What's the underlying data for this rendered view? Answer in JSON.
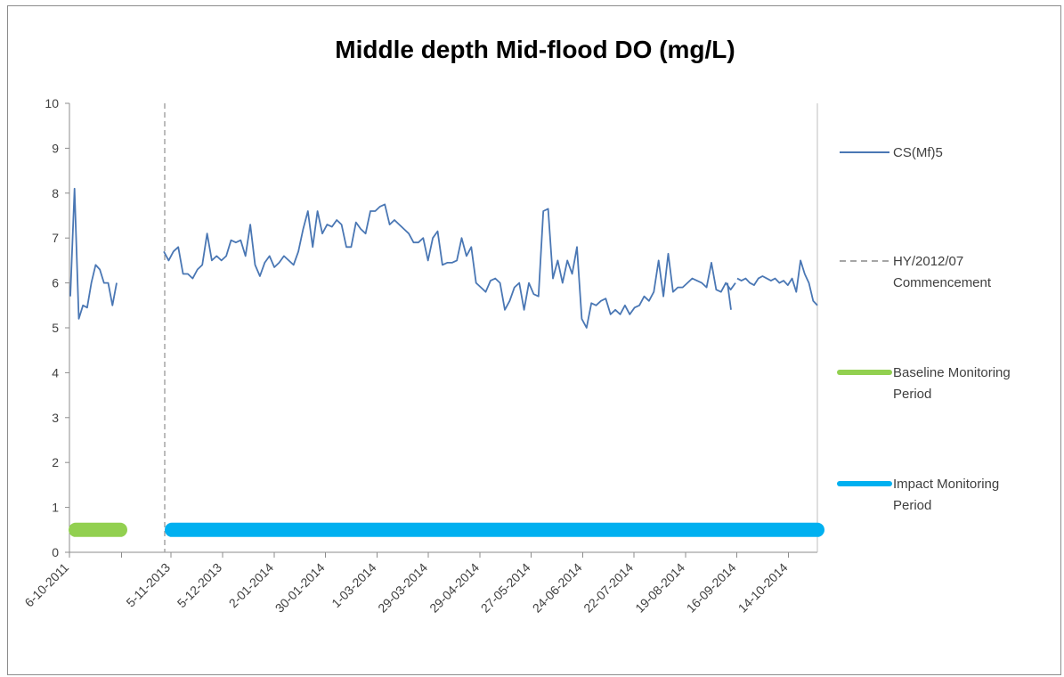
{
  "chart_data": {
    "type": "line",
    "title": "Middle depth Mid-flood DO (mg/L)",
    "xlabel": "",
    "ylabel": "",
    "ylim": [
      0,
      10
    ],
    "y_ticks": [
      "0",
      "1",
      "2",
      "3",
      "4",
      "5",
      "6",
      "7",
      "8",
      "9",
      "10"
    ],
    "x_tick_labels": [
      "6-10-2011",
      "5-11-2013",
      "5-12-2013",
      "2-01-2014",
      "30-01-2014",
      "1-03-2014",
      "29-03-2014",
      "29-04-2014",
      "27-05-2014",
      "24-06-2014",
      "22-07-2014",
      "19-08-2014",
      "16-09-2014",
      "14-10-2014"
    ],
    "grid": false,
    "legend_position": "right",
    "colors": {
      "do_series": "#4a77b4",
      "commencement": "#a6a6a6",
      "baseline": "#92d050",
      "impact": "#00b0f0",
      "axis": "#8c8c8c"
    },
    "legend": [
      {
        "label": "CS(Mf)5",
        "style": "line"
      },
      {
        "label": "HY/2012/07 Commencement",
        "style": "dash"
      },
      {
        "label": "Baseline Monitoring Period",
        "style": "thick-green"
      },
      {
        "label": "Impact Monitoring Period",
        "style": "thick-blue"
      }
    ],
    "series": [
      {
        "name": "CS(Mf)5",
        "segments": [
          [
            5.7,
            8.1,
            5.2,
            5.5,
            5.45,
            6.0,
            6.4,
            6.3,
            6.0,
            6.0,
            5.5,
            6.0
          ],
          [
            6.7,
            6.5,
            6.7,
            6.8,
            6.2,
            6.2,
            6.1,
            6.3,
            6.4,
            7.1,
            6.5,
            6.6,
            6.5,
            6.6,
            6.95,
            6.9,
            6.95,
            6.6,
            7.3,
            6.4,
            6.15,
            6.45,
            6.6,
            6.35,
            6.45,
            6.6,
            6.5,
            6.4,
            6.7,
            7.2,
            7.6,
            6.8,
            7.6,
            7.1,
            7.3,
            7.25,
            7.4,
            7.3,
            6.8,
            6.8,
            7.35,
            7.2,
            7.1,
            7.6,
            7.6,
            7.7,
            7.75,
            7.3,
            7.4,
            7.3,
            7.2,
            7.1,
            6.9,
            6.9,
            7.0,
            6.5,
            7.0,
            7.15,
            6.4,
            6.45,
            6.45,
            6.5,
            7.0,
            6.6,
            6.8,
            6.0,
            5.9,
            5.8,
            6.05,
            6.1,
            6.0,
            5.4,
            5.6,
            5.9,
            6.0,
            5.4,
            6.0,
            5.75,
            5.7,
            7.6,
            7.65,
            6.1,
            6.5,
            6.0,
            6.5,
            6.2,
            6.8,
            5.2,
            5.0,
            5.55,
            5.5,
            5.6,
            5.65,
            5.3,
            5.4,
            5.3,
            5.5,
            5.3,
            5.45,
            5.5,
            5.7,
            5.6,
            5.8,
            6.5,
            5.7,
            6.65,
            5.8,
            5.9,
            5.9,
            6.0,
            6.1,
            6.05,
            6.0,
            5.9,
            6.45,
            5.85,
            5.8,
            6.0,
            5.85,
            6.0
          ],
          [
            6.0,
            5.4
          ],
          [
            6.1,
            6.05,
            6.1,
            6.0,
            5.95,
            6.1,
            6.15,
            6.1,
            6.05,
            6.1,
            6.0,
            6.05,
            5.95,
            6.1,
            5.8,
            6.5,
            6.2,
            6.0,
            5.6,
            5.5
          ]
        ]
      }
    ],
    "baseline_period": {
      "value": 0.5
    },
    "impact_period": {
      "value": 0.5
    }
  }
}
